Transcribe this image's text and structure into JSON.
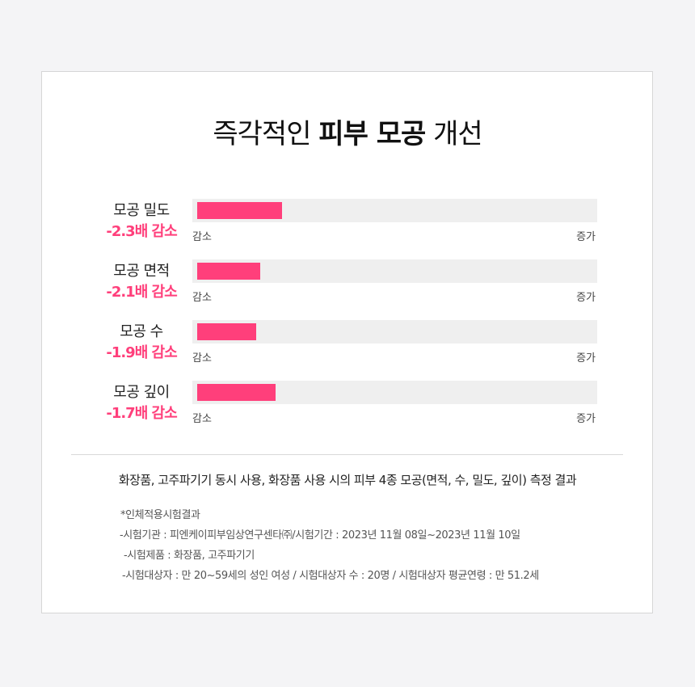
{
  "title": {
    "prefix": "즉각적인",
    "highlight": "피부 모공",
    "suffix": "개선"
  },
  "metrics": [
    {
      "name": "모공 밀도",
      "value": "-2.3배 감소",
      "fill": 0.21,
      "left_label": "감소",
      "right_label": "증가"
    },
    {
      "name": "모공 면적",
      "value": "-2.1배 감소",
      "fill": 0.155,
      "left_label": "감소",
      "right_label": "증가"
    },
    {
      "name": "모공 수",
      "value": "-1.9배 감소",
      "fill": 0.146,
      "left_label": "감소",
      "right_label": "증가"
    },
    {
      "name": "모공 깊이",
      "value": "-1.7배 감소",
      "fill": 0.194,
      "left_label": "감소",
      "right_label": "증가"
    }
  ],
  "summary": "화장품, 고주파기기 동시 사용, 화장품 사용 시의 피부 4종 모공(면적, 수, 밀도, 깊이) 측정 결과",
  "notes": [
    "*인체적용시험결과",
    "-시험기관 : 피엔케이피부임상연구센타㈜/시험기간 : 2023년 11월 08일~2023년 11월 10일",
    "-시험제품 : 화장품, 고주파기기",
    "-시험대상자 : 만 20~59세의 성인 여성 / 시험대상자 수 : 20명 / 시험대상자 평균연령 : 만 51.2세"
  ],
  "colors": {
    "accent": "#ff3f7b",
    "track": "#efefef"
  }
}
